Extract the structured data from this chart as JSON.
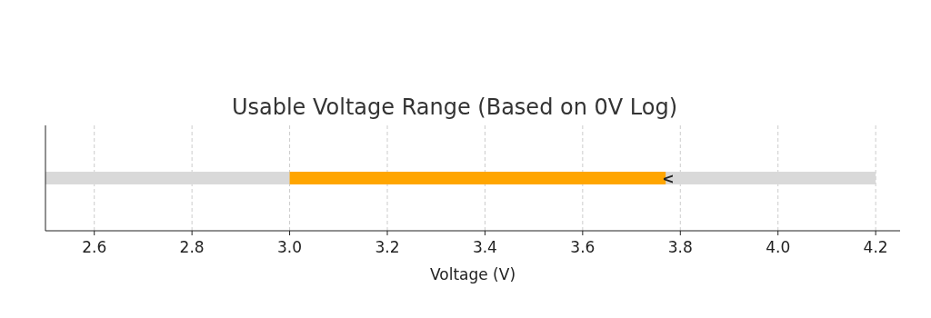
{
  "chart_data": {
    "type": "bar",
    "orientation": "horizontal",
    "title": "Usable Voltage Range (Based on 0V Log)",
    "xlabel": "Voltage (V)",
    "categories": [
      null
    ],
    "series": [
      {
        "color": "#d9d9d9",
        "values": [
          1.7
        ],
        "base": [
          2.5
        ]
      },
      {
        "color": "#ffa500",
        "values": [
          0.77
        ],
        "base": [
          3.0
        ]
      }
    ],
    "annotations": [
      {
        "text": "<",
        "x": 3.775
      }
    ],
    "xlim": [
      2.5,
      4.25
    ],
    "xticks": [
      2.6,
      2.8,
      {
        "value": 3.0,
        "label": "3.0"
      },
      3.2,
      3.4,
      3.6,
      3.8,
      {
        "value": 4.0,
        "label": "4.0"
      },
      4.2
    ],
    "grid": "x"
  }
}
